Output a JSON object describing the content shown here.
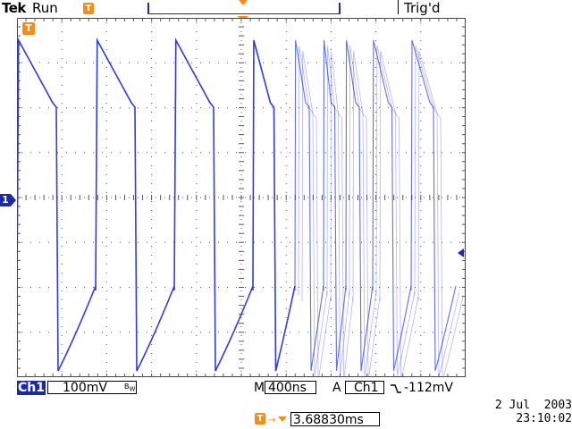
{
  "header": {
    "brand": "Tek",
    "acq_state": "Run",
    "trigger_status": "Trig'd",
    "trigger_marker": "T"
  },
  "markers": {
    "channel_marker": "1",
    "trigger_marker": "T"
  },
  "readouts": {
    "channel": "Ch1",
    "volts_per_div": "100mV",
    "bw_limit": "B",
    "bw_limit_sub": "W",
    "timebase_label": "M",
    "time_per_div": "400ns",
    "trigger_mode_label": "A",
    "trigger_source": "Ch1",
    "trigger_slope_icon": "falling-edge-icon",
    "trigger_level": "-112mV",
    "delay_icon": "T",
    "delay_value": "3.68830ms",
    "date": "2 Jul  2003",
    "time": "23:10:02"
  },
  "colors": {
    "trace": "#2233dd",
    "accent_orange": "#f28c1c",
    "channel_blue": "#1c2aa8",
    "grid": "#555555"
  },
  "waveform": {
    "type": "square-with-decay",
    "channel": "Ch1",
    "cycles_visible": 9
  }
}
